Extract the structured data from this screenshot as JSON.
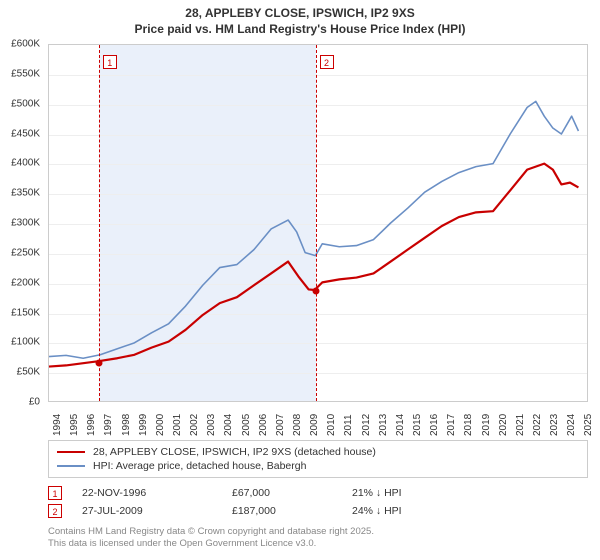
{
  "title_line1": "28, APPLEBY CLOSE, IPSWICH, IP2 9XS",
  "title_line2": "Price paid vs. HM Land Registry's House Price Index (HPI)",
  "chart": {
    "type": "line",
    "background_color": "#ffffff",
    "grid_color": "#eeeeee",
    "border_color": "#cccccc",
    "shaded_band_color": "#eaf0fa",
    "shaded_band_x_range": [
      1996.9,
      2009.55
    ],
    "marker_line_color": "#cc0000",
    "marker_badge_border": "#cc0000",
    "x_axis": {
      "min": 1994,
      "max": 2025.5,
      "ticks": [
        1994,
        1995,
        1996,
        1997,
        1998,
        1999,
        2000,
        2001,
        2002,
        2003,
        2004,
        2005,
        2006,
        2007,
        2008,
        2009,
        2010,
        2011,
        2012,
        2013,
        2014,
        2015,
        2016,
        2017,
        2018,
        2019,
        2020,
        2021,
        2022,
        2023,
        2024,
        2025
      ],
      "label_fontsize": 10,
      "label_rotation": -90
    },
    "y_axis": {
      "min": 0,
      "max": 600000,
      "ticks": [
        0,
        50000,
        100000,
        150000,
        200000,
        250000,
        300000,
        350000,
        400000,
        450000,
        500000,
        550000,
        600000
      ],
      "tick_labels": [
        "£0",
        "£50K",
        "£100K",
        "£150K",
        "£200K",
        "£250K",
        "£300K",
        "£350K",
        "£400K",
        "£450K",
        "£500K",
        "£550K",
        "£600K"
      ],
      "label_fontsize": 10
    },
    "series": [
      {
        "name": "price_paid",
        "color": "#c80000",
        "line_width": 2.2,
        "points": [
          [
            1994,
            58000
          ],
          [
            1995,
            60000
          ],
          [
            1996.9,
            67000
          ],
          [
            1998,
            72000
          ],
          [
            1999,
            78000
          ],
          [
            2000,
            90000
          ],
          [
            2001,
            100000
          ],
          [
            2002,
            120000
          ],
          [
            2003,
            145000
          ],
          [
            2004,
            165000
          ],
          [
            2005,
            175000
          ],
          [
            2006,
            195000
          ],
          [
            2007,
            215000
          ],
          [
            2008,
            235000
          ],
          [
            2008.6,
            210000
          ],
          [
            2009.2,
            188000
          ],
          [
            2009.55,
            187000
          ],
          [
            2010,
            200000
          ],
          [
            2011,
            205000
          ],
          [
            2012,
            208000
          ],
          [
            2013,
            215000
          ],
          [
            2014,
            235000
          ],
          [
            2015,
            255000
          ],
          [
            2016,
            275000
          ],
          [
            2017,
            295000
          ],
          [
            2018,
            310000
          ],
          [
            2019,
            318000
          ],
          [
            2020,
            320000
          ],
          [
            2021,
            355000
          ],
          [
            2022,
            390000
          ],
          [
            2023,
            400000
          ],
          [
            2023.5,
            390000
          ],
          [
            2024,
            365000
          ],
          [
            2024.5,
            368000
          ],
          [
            2025,
            360000
          ]
        ]
      },
      {
        "name": "hpi",
        "color": "#6a8fc5",
        "line_width": 1.6,
        "points": [
          [
            1994,
            75000
          ],
          [
            1995,
            77000
          ],
          [
            1996,
            72000
          ],
          [
            1997,
            78000
          ],
          [
            1998,
            88000
          ],
          [
            1999,
            98000
          ],
          [
            2000,
            115000
          ],
          [
            2001,
            130000
          ],
          [
            2002,
            160000
          ],
          [
            2003,
            195000
          ],
          [
            2004,
            225000
          ],
          [
            2005,
            230000
          ],
          [
            2006,
            255000
          ],
          [
            2007,
            290000
          ],
          [
            2008,
            305000
          ],
          [
            2008.5,
            285000
          ],
          [
            2009,
            250000
          ],
          [
            2009.6,
            245000
          ],
          [
            2010,
            265000
          ],
          [
            2011,
            260000
          ],
          [
            2012,
            262000
          ],
          [
            2013,
            272000
          ],
          [
            2014,
            300000
          ],
          [
            2015,
            325000
          ],
          [
            2016,
            352000
          ],
          [
            2017,
            370000
          ],
          [
            2018,
            385000
          ],
          [
            2019,
            395000
          ],
          [
            2020,
            400000
          ],
          [
            2021,
            450000
          ],
          [
            2022,
            495000
          ],
          [
            2022.5,
            505000
          ],
          [
            2023,
            480000
          ],
          [
            2023.5,
            460000
          ],
          [
            2024,
            450000
          ],
          [
            2024.6,
            480000
          ],
          [
            2025,
            455000
          ]
        ]
      }
    ],
    "markers": [
      {
        "id": "1",
        "x": 1996.9,
        "y": 67000,
        "series": "price_paid"
      },
      {
        "id": "2",
        "x": 2009.55,
        "y": 187000,
        "series": "price_paid"
      }
    ]
  },
  "legend": {
    "items": [
      {
        "color": "#c80000",
        "width": 2.2,
        "label": "28, APPLEBY CLOSE, IPSWICH, IP2 9XS (detached house)"
      },
      {
        "color": "#6a8fc5",
        "width": 1.6,
        "label": "HPI: Average price, detached house, Babergh"
      }
    ]
  },
  "events": [
    {
      "id": "1",
      "date": "22-NOV-1996",
      "price": "£67,000",
      "hpi_diff": "21% ↓ HPI"
    },
    {
      "id": "2",
      "date": "27-JUL-2009",
      "price": "£187,000",
      "hpi_diff": "24% ↓ HPI"
    }
  ],
  "attribution_line1": "Contains HM Land Registry data © Crown copyright and database right 2025.",
  "attribution_line2": "This data is licensed under the Open Government Licence v3.0."
}
